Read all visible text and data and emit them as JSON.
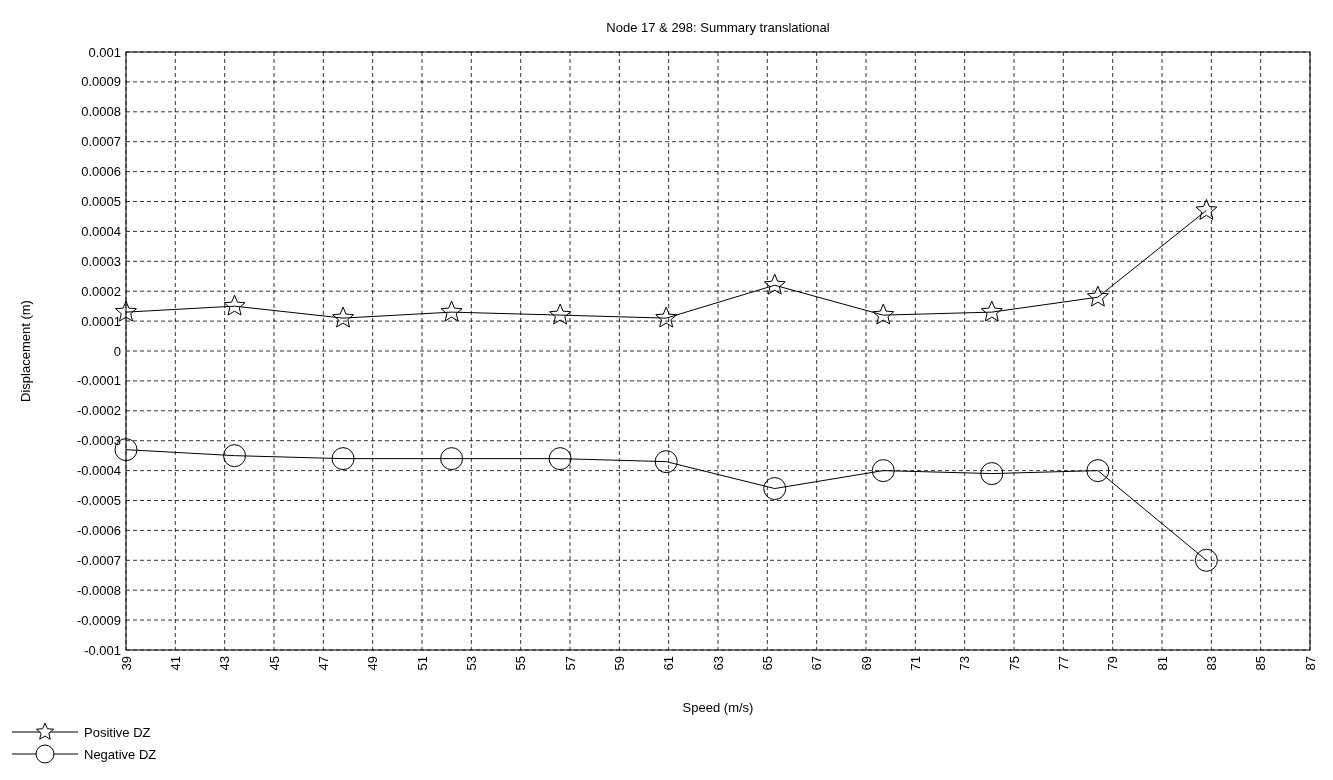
{
  "chart_data": {
    "type": "line",
    "title": "Node 17 & 298: Summary translational",
    "xlabel": "Speed (m/s)",
    "ylabel": "Displacement (m)",
    "xlim": [
      39,
      87
    ],
    "xticks": [
      39,
      41,
      43,
      45,
      47,
      49,
      51,
      53,
      55,
      57,
      59,
      61,
      63,
      65,
      67,
      69,
      71,
      73,
      75,
      77,
      79,
      81,
      83,
      85,
      87
    ],
    "ylim": [
      -0.001,
      0.001
    ],
    "yticks": [
      -0.001,
      -0.0009,
      -0.0008,
      -0.0007,
      -0.0006,
      -0.0005,
      -0.0004,
      -0.0003,
      -0.0002,
      -0.0001,
      0,
      0.0001,
      0.0002,
      0.0003,
      0.0004,
      0.0005,
      0.0006,
      0.0007,
      0.0008,
      0.0009,
      0.001
    ],
    "grid": true,
    "legend": "bottom left",
    "line_style": "solid",
    "x": [
      39,
      43.4,
      47.8,
      52.2,
      56.6,
      60.9,
      65.3,
      69.7,
      74.1,
      78.4,
      82.8
    ],
    "series": [
      {
        "name": "Positive DZ",
        "color": "#000000",
        "marker": "star",
        "values": [
          0.00013,
          0.00015,
          0.00011,
          0.00013,
          0.00012,
          0.00011,
          0.00022,
          0.00012,
          0.00013,
          0.00018,
          0.00047
        ]
      },
      {
        "name": "Negative DZ",
        "color": "#000000",
        "marker": "circle",
        "values": [
          -0.00033,
          -0.00035,
          -0.00036,
          -0.00036,
          -0.00036,
          -0.00037,
          -0.00046,
          -0.0004,
          -0.00041,
          -0.0004,
          -0.0007
        ]
      }
    ]
  }
}
